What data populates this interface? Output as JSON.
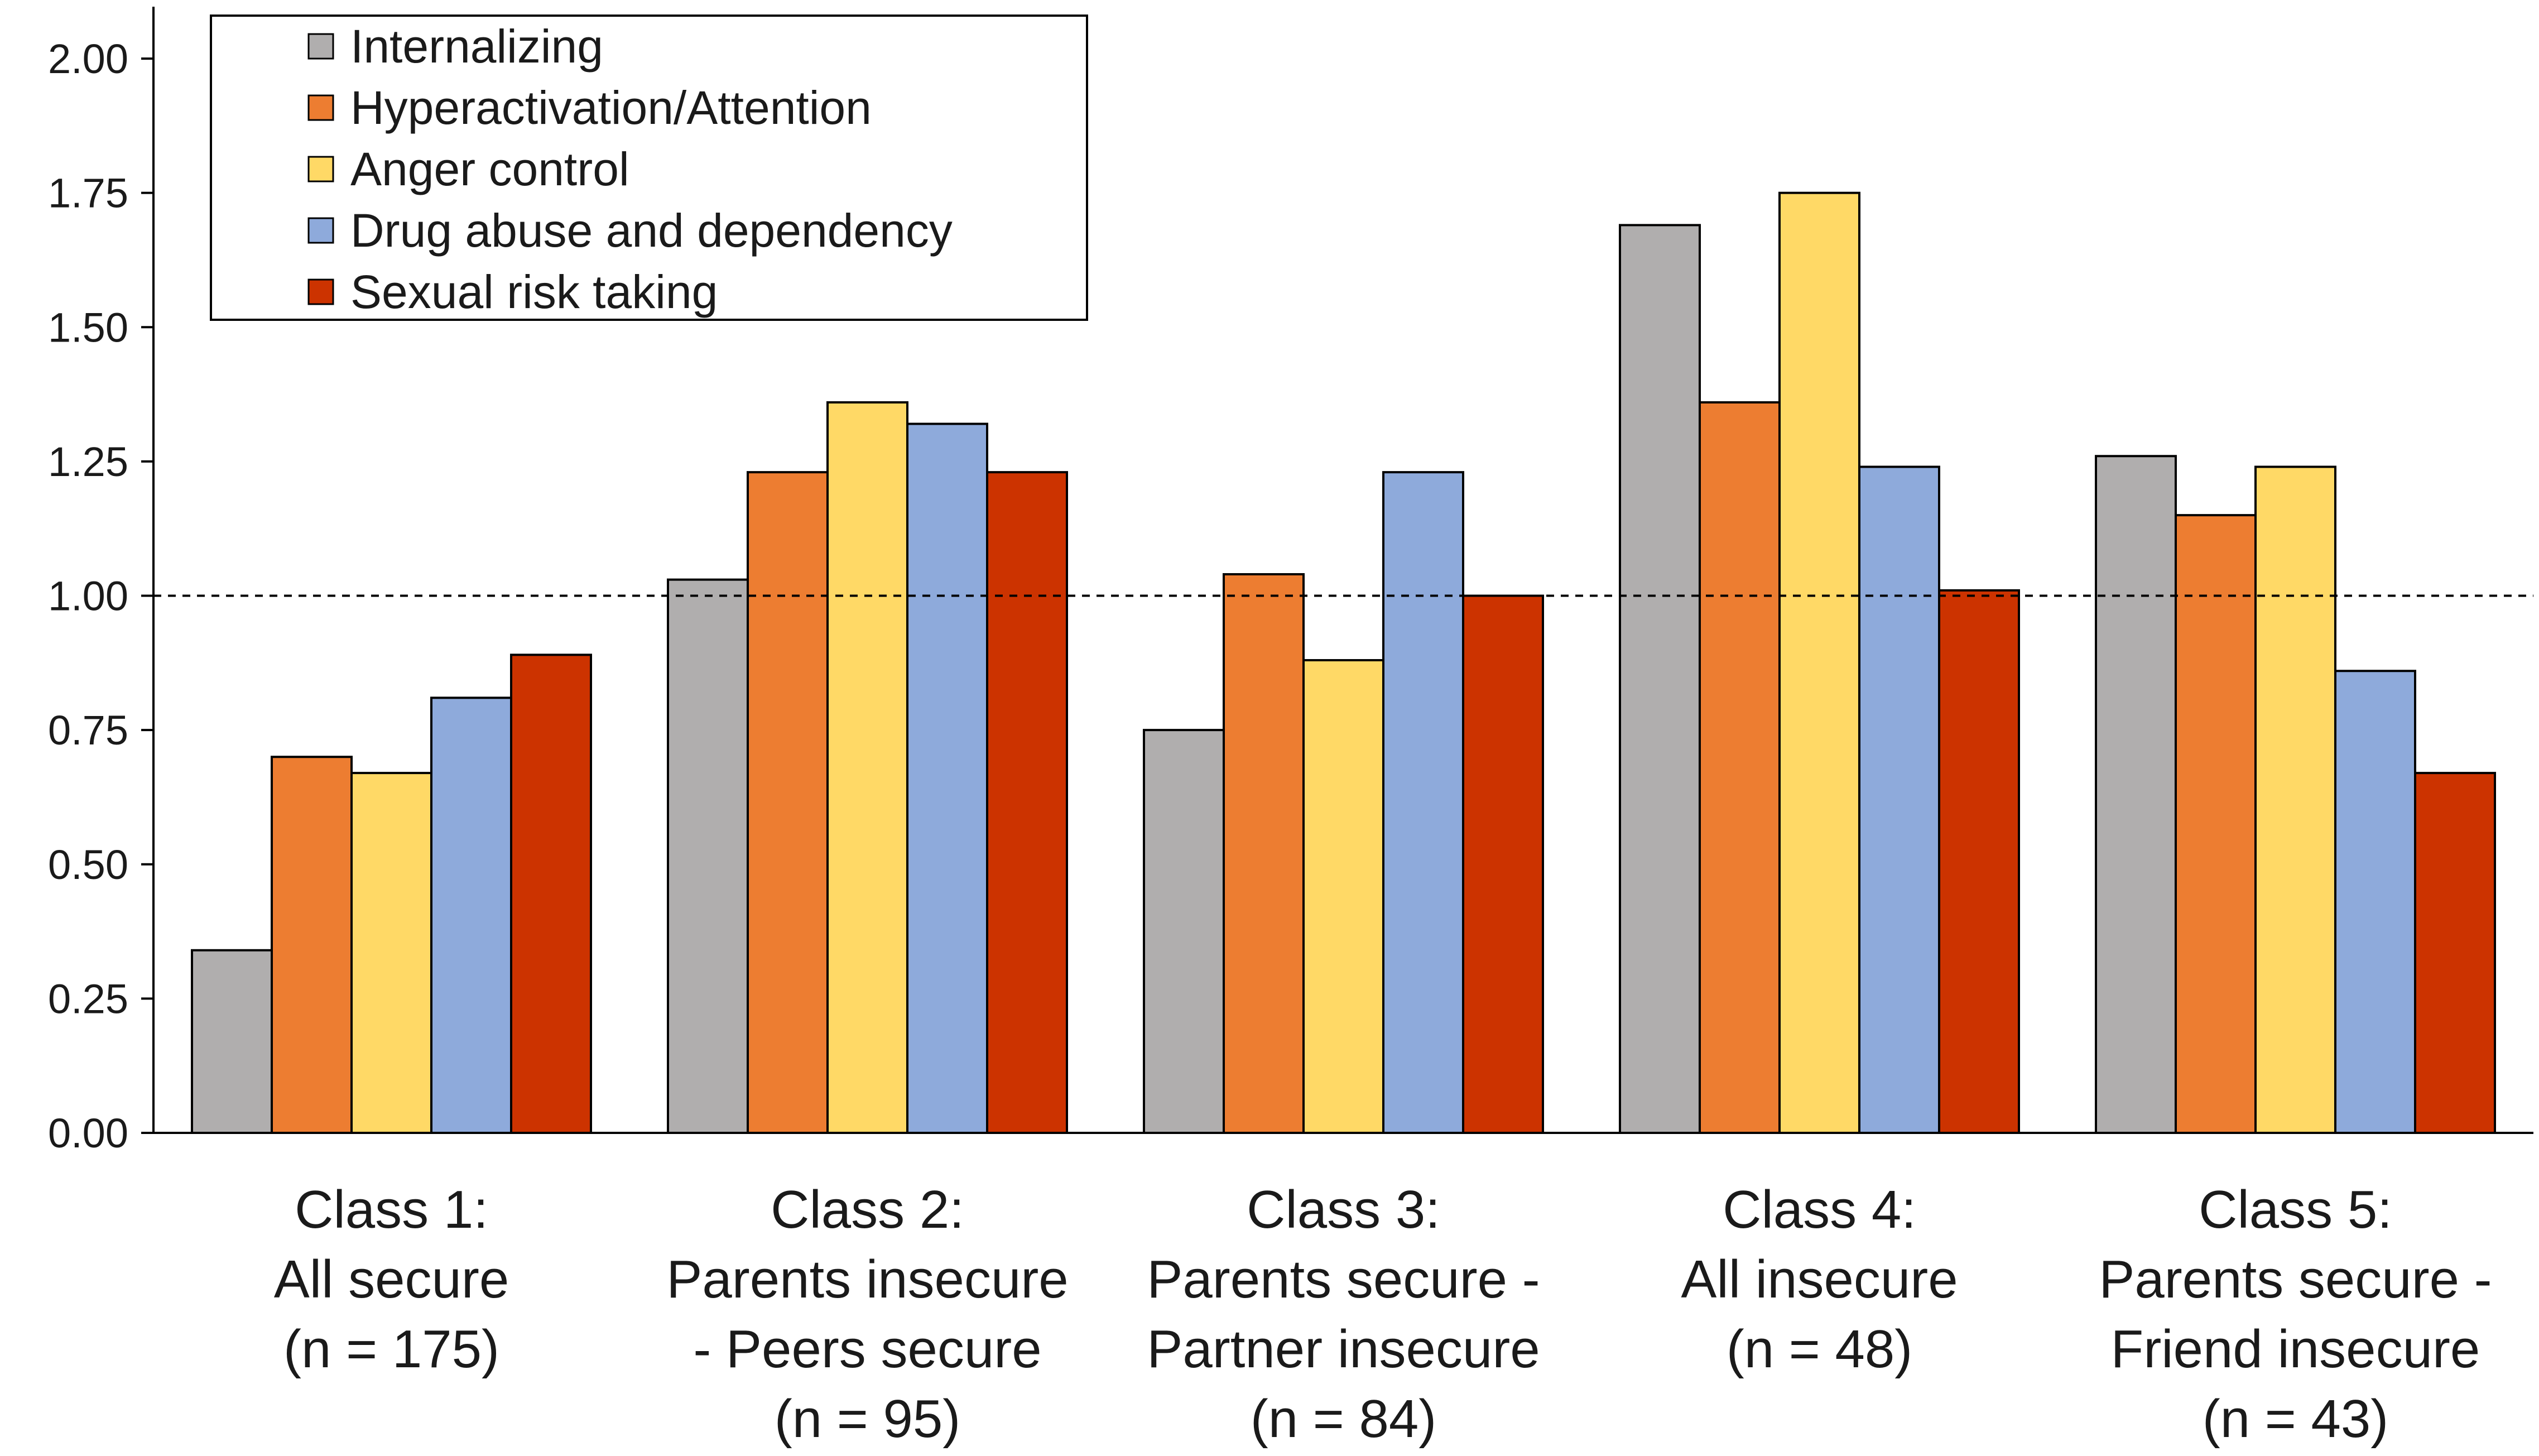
{
  "chart_data": {
    "type": "bar",
    "title": "",
    "xlabel": "",
    "ylabel": "",
    "ylim": [
      0,
      2.0
    ],
    "yticks": [
      "0.00",
      "0.25",
      "0.50",
      "0.75",
      "1.00",
      "1.25",
      "1.50",
      "1.75",
      "2.00"
    ],
    "reference_line": 1.0,
    "legend_position": "top-left",
    "categories": [
      [
        "Class 1:",
        "All secure",
        "(n = 175)"
      ],
      [
        "Class 2:",
        "Parents insecure",
        "- Peers secure",
        "(n = 95)"
      ],
      [
        "Class 3:",
        "Parents secure -",
        "Partner insecure",
        "(n = 84)"
      ],
      [
        "Class 4:",
        "All insecure",
        "(n = 48)"
      ],
      [
        "Class 5:",
        "Parents secure -",
        "Friend insecure",
        "(n = 43)"
      ]
    ],
    "series": [
      {
        "name": "Internalizing",
        "color": "#b0aeae",
        "values": [
          0.34,
          1.03,
          0.75,
          1.69,
          1.26
        ]
      },
      {
        "name": "Hyperactivation/Attention",
        "color": "#ed7d31",
        "values": [
          0.7,
          1.23,
          1.04,
          1.36,
          1.15
        ]
      },
      {
        "name": "Anger control",
        "color": "#ffd966",
        "values": [
          0.67,
          1.36,
          0.88,
          1.75,
          1.24
        ]
      },
      {
        "name": "Drug abuse and dependency",
        "color": "#8eaadb",
        "values": [
          0.81,
          1.32,
          1.23,
          1.24,
          0.86
        ]
      },
      {
        "name": "Sexual risk taking",
        "color": "#cc3300",
        "values": [
          0.89,
          1.23,
          1.0,
          1.01,
          0.67
        ]
      }
    ]
  }
}
